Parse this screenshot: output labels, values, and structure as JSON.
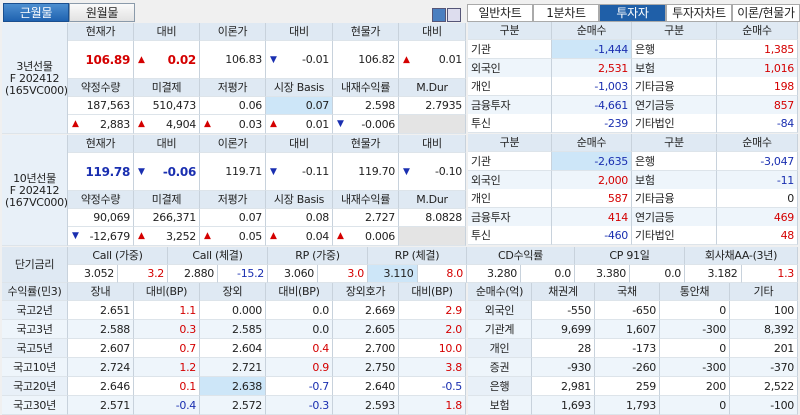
{
  "top_tabs": [
    {
      "label": "근월물",
      "active": true
    },
    {
      "label": "원월물",
      "active": false
    }
  ],
  "view_icons": [
    "layout-split-icon",
    "layout-panel-icon"
  ],
  "right_tabs": [
    {
      "label": "일반차트",
      "active": false
    },
    {
      "label": "1분차트",
      "active": false
    },
    {
      "label": "투자자",
      "active": true
    },
    {
      "label": "투자자차트",
      "active": false
    },
    {
      "label": "이론/현물가",
      "active": false
    }
  ],
  "futures": [
    {
      "name": "3년선물\nF 202412\n(165VC000)",
      "price_color": "#d40000",
      "header1": [
        "현재가",
        "대비",
        "이론가",
        "대비",
        "현물가",
        "대비"
      ],
      "values1": [
        {
          "v": "106.89"
        },
        {
          "v": "0.02",
          "arrow": "up"
        },
        {
          "v": "106.83"
        },
        {
          "v": "-0.01",
          "arrow": "down"
        },
        {
          "v": "106.82"
        },
        {
          "v": "0.01",
          "arrow": "up"
        }
      ],
      "header2": [
        "약정수량",
        "미결제",
        "저평가",
        "시장 Basis",
        "내재수익률",
        "M.Dur"
      ],
      "values2": [
        "187,563",
        "510,473",
        "0.06",
        "0.07",
        "2.598",
        "2.7935"
      ],
      "changes": [
        {
          "v": "2,883",
          "arrow": "up"
        },
        {
          "v": "4,904",
          "arrow": "up"
        },
        {
          "v": "0.03",
          "arrow": "up"
        },
        {
          "v": "0.01",
          "arrow": "up"
        },
        {
          "v": "-0.006",
          "arrow": "down"
        },
        {
          "v": ""
        }
      ]
    },
    {
      "name": "10년선물\nF 202412\n(167VC000)",
      "price_color": "#1a2fb0",
      "header1": [
        "현재가",
        "대비",
        "이론가",
        "대비",
        "현물가",
        "대비"
      ],
      "values1": [
        {
          "v": "119.78"
        },
        {
          "v": "-0.06",
          "arrow": "down"
        },
        {
          "v": "119.71"
        },
        {
          "v": "-0.11",
          "arrow": "down"
        },
        {
          "v": "119.70"
        },
        {
          "v": "-0.10",
          "arrow": "down"
        }
      ],
      "header2": [
        "약정수량",
        "미결제",
        "저평가",
        "시장 Basis",
        "내재수익률",
        "M.Dur"
      ],
      "values2": [
        "90,069",
        "266,371",
        "0.07",
        "0.08",
        "2.727",
        "8.0828"
      ],
      "changes": [
        {
          "v": "-12,679",
          "arrow": "down"
        },
        {
          "v": "3,252",
          "arrow": "up"
        },
        {
          "v": "0.05",
          "arrow": "up"
        },
        {
          "v": "0.04",
          "arrow": "up"
        },
        {
          "v": "0.006",
          "arrow": "up"
        },
        {
          "v": ""
        }
      ]
    }
  ],
  "investors": [
    {
      "headers": [
        "구분",
        "순매수",
        "구분",
        "순매수"
      ],
      "rows": [
        [
          "기관",
          "-1,444",
          "은행",
          "1,385"
        ],
        [
          "외국인",
          "2,531",
          "보험",
          "1,016"
        ],
        [
          "개인",
          "-1,003",
          "기타금융",
          "198"
        ],
        [
          "금융투자",
          "-4,661",
          "연기금등",
          "857"
        ],
        [
          "투신",
          "-239",
          "기타법인",
          "-84"
        ]
      ]
    },
    {
      "headers": [
        "구분",
        "순매수",
        "구분",
        "순매수"
      ],
      "rows": [
        [
          "기관",
          "-2,635",
          "은행",
          "-3,047"
        ],
        [
          "외국인",
          "2,000",
          "보험",
          "-11"
        ],
        [
          "개인",
          "587",
          "기타금융",
          "0"
        ],
        [
          "금융투자",
          "414",
          "연기금등",
          "469"
        ],
        [
          "투신",
          "-460",
          "기타법인",
          "48"
        ]
      ]
    }
  ],
  "short_rates": {
    "label": "단기금리",
    "items": [
      {
        "name": "Call (가중)",
        "rate": "3.052",
        "chg": "3.2"
      },
      {
        "name": "Call (체결)",
        "rate": "2.880",
        "chg": "-15.2"
      },
      {
        "name": "RP (가중)",
        "rate": "3.060",
        "chg": "3.0"
      },
      {
        "name": "RP (체결)",
        "rate": "3.110",
        "chg": "8.0"
      },
      {
        "name": "CD수익률",
        "rate": "3.280",
        "chg": "0.0"
      },
      {
        "name": "CP 91일",
        "rate": "3.380",
        "chg": "0.0"
      },
      {
        "name": "회사채AA-(3년)",
        "rate": "3.182",
        "chg": "1.3"
      }
    ]
  },
  "yields": {
    "headers": [
      "수익률(민3)",
      "장내",
      "대비(BP)",
      "장외",
      "대비(BP)",
      "장외호가",
      "대비(BP)"
    ],
    "rows": [
      [
        "국고2년",
        "2.651",
        "1.1",
        "0.000",
        "0.0",
        "2.669",
        "2.9"
      ],
      [
        "국고3년",
        "2.588",
        "0.3",
        "2.585",
        "0.0",
        "2.605",
        "2.0"
      ],
      [
        "국고5년",
        "2.607",
        "0.7",
        "2.604",
        "0.4",
        "2.700",
        "10.0"
      ],
      [
        "국고10년",
        "2.724",
        "1.2",
        "2.721",
        "0.9",
        "2.750",
        "3.8"
      ],
      [
        "국고20년",
        "2.646",
        "0.1",
        "2.638",
        "-0.7",
        "2.640",
        "-0.5"
      ],
      [
        "국고30년",
        "2.571",
        "-0.4",
        "2.572",
        "-0.3",
        "2.593",
        "1.8"
      ]
    ]
  },
  "net_buy": {
    "headers": [
      "순매수(억)",
      "채권계",
      "국채",
      "통안채",
      "기타"
    ],
    "rows": [
      [
        "외국인",
        "-550",
        "-650",
        "0",
        "100"
      ],
      [
        "기관계",
        "9,699",
        "1,607",
        "-300",
        "8,392"
      ],
      [
        "개인",
        "28",
        "-173",
        "0",
        "201"
      ],
      [
        "증권",
        "-930",
        "-260",
        "-300",
        "-370"
      ],
      [
        "은행",
        "2,981",
        "259",
        "200",
        "2,522"
      ],
      [
        "보험",
        "1,693",
        "1,793",
        "0",
        "-100"
      ]
    ]
  },
  "colors": {
    "up": "#d40000",
    "down": "#1a2fb0",
    "header_bg": "#dfe9f3",
    "active_tab": "#1f62b0"
  }
}
